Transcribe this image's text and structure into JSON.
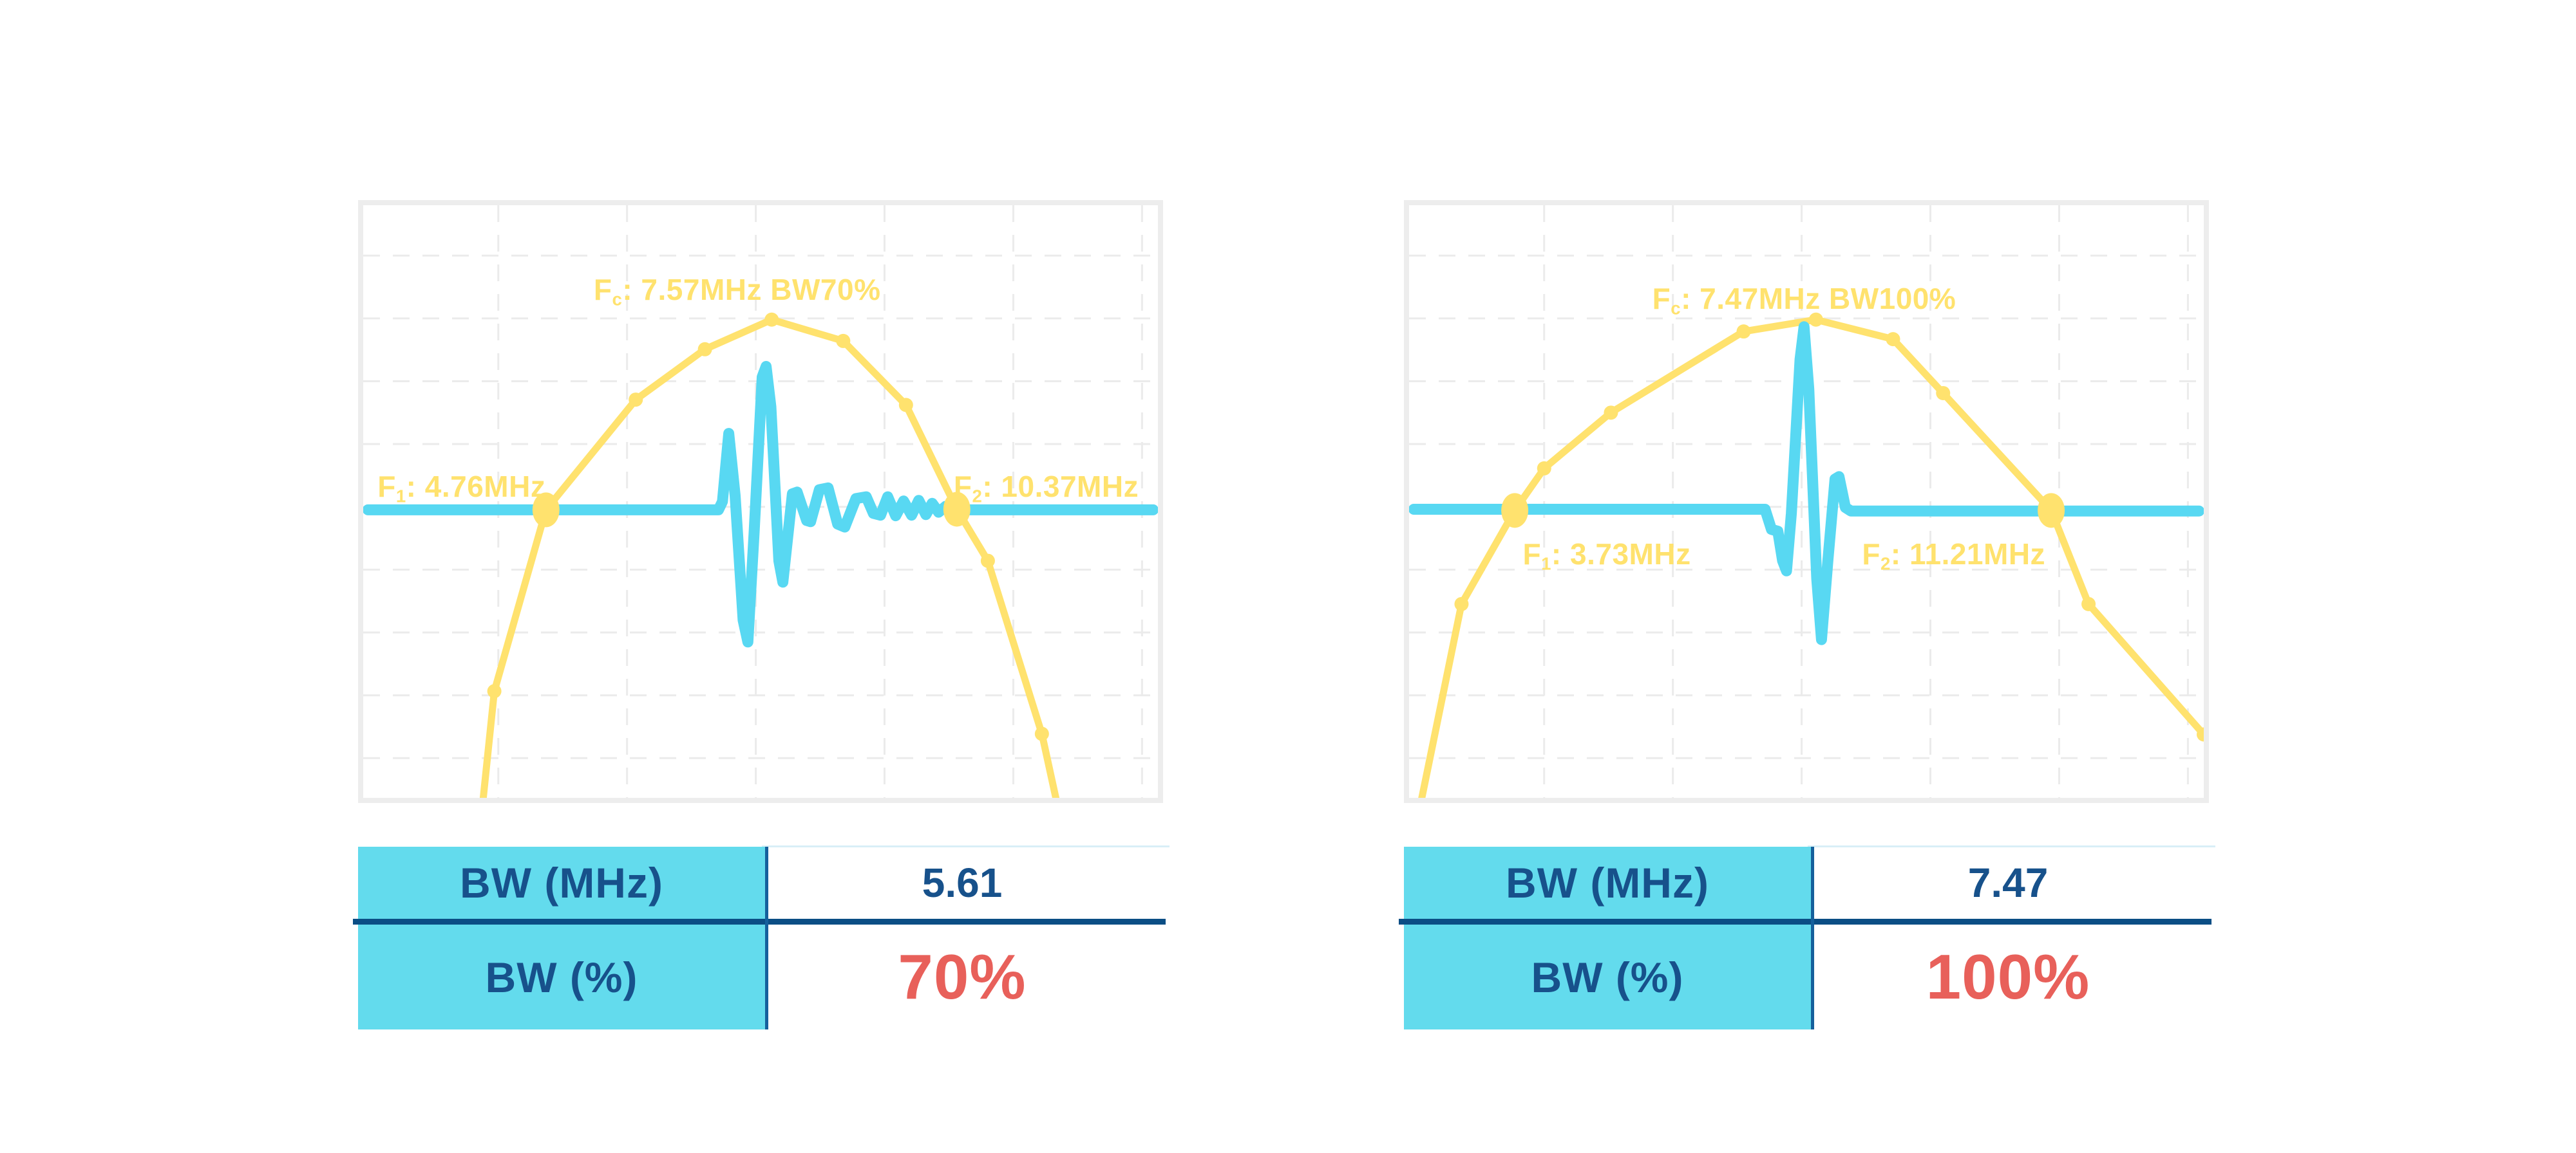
{
  "colors": {
    "spectrum_yellow": "#FFE26E",
    "waveform_cyan": "#58D8F2",
    "table_header_bg": "#63DBED",
    "navy_text": "#17518B",
    "red_value": "#E8605A",
    "row_divider_blue": "#0B4E85",
    "column_divider_blue": "#15609C",
    "value_column_topline": "#D9EFF7",
    "chart_border_gray": "#EDEDED",
    "grid_gray": "#EBEBEB"
  },
  "chart_data": [
    {
      "type": "line",
      "title": {
        "prefix": "F",
        "sub": "c",
        "rest": ": 7.57MHz BW70%",
        "full_text": "Fc: 7.57MHz BW70%"
      },
      "annotations": {
        "f1": {
          "prefix": "F",
          "sub": "1",
          "rest": ": 4.76MHz",
          "mhz": 4.76
        },
        "f2": {
          "prefix": "F",
          "sub": "2",
          "rest": ": 10.37MHz",
          "mhz": 10.37
        },
        "fc_mhz": 7.57,
        "bw_percent": 70
      },
      "axes": {
        "x_label": "",
        "y_label": "",
        "ticks": "none",
        "grid": "dashed"
      },
      "series": [
        {
          "name": "spectrum",
          "color": "#FFE26E",
          "width": 11,
          "points": [
            [
              0.148,
              1.04
            ],
            [
              0.165,
              0.82
            ],
            [
              0.23,
              0.514
            ],
            [
              0.343,
              0.328
            ],
            [
              0.43,
              0.243
            ],
            [
              0.514,
              0.193
            ],
            [
              0.604,
              0.229
            ],
            [
              0.683,
              0.337
            ],
            [
              0.747,
              0.513
            ],
            [
              0.786,
              0.6
            ],
            [
              0.854,
              0.892
            ],
            [
              0.878,
              1.04
            ]
          ],
          "markers": [
            {
              "x": 0.165,
              "y": 0.82,
              "size": "small"
            },
            {
              "x": 0.23,
              "y": 0.514,
              "size": "big"
            },
            {
              "x": 0.343,
              "y": 0.328,
              "size": "small"
            },
            {
              "x": 0.43,
              "y": 0.243,
              "size": "small"
            },
            {
              "x": 0.514,
              "y": 0.193,
              "size": "small"
            },
            {
              "x": 0.604,
              "y": 0.229,
              "size": "small"
            },
            {
              "x": 0.683,
              "y": 0.337,
              "size": "small"
            },
            {
              "x": 0.747,
              "y": 0.513,
              "size": "big"
            },
            {
              "x": 0.786,
              "y": 0.6,
              "size": "small"
            },
            {
              "x": 0.854,
              "y": 0.892,
              "size": "small"
            }
          ]
        },
        {
          "name": "pulse_waveform",
          "color": "#58D8F2",
          "width": 17,
          "points": [
            [
              0.006,
              0.514
            ],
            [
              0.447,
              0.514
            ],
            [
              0.452,
              0.5
            ],
            [
              0.46,
              0.385
            ],
            [
              0.468,
              0.49
            ],
            [
              0.478,
              0.7
            ],
            [
              0.484,
              0.737
            ],
            [
              0.492,
              0.55
            ],
            [
              0.502,
              0.29
            ],
            [
              0.507,
              0.272
            ],
            [
              0.513,
              0.34
            ],
            [
              0.523,
              0.6
            ],
            [
              0.528,
              0.636
            ],
            [
              0.54,
              0.487
            ],
            [
              0.546,
              0.484
            ],
            [
              0.558,
              0.532
            ],
            [
              0.563,
              0.534
            ],
            [
              0.574,
              0.48
            ],
            [
              0.585,
              0.477
            ],
            [
              0.597,
              0.538
            ],
            [
              0.606,
              0.543
            ],
            [
              0.62,
              0.495
            ],
            [
              0.633,
              0.492
            ],
            [
              0.642,
              0.52
            ],
            [
              0.651,
              0.523
            ],
            [
              0.66,
              0.492
            ],
            [
              0.67,
              0.524
            ],
            [
              0.68,
              0.499
            ],
            [
              0.69,
              0.523
            ],
            [
              0.699,
              0.498
            ],
            [
              0.708,
              0.522
            ],
            [
              0.716,
              0.503
            ],
            [
              0.724,
              0.518
            ],
            [
              0.733,
              0.508
            ],
            [
              0.74,
              0.514
            ],
            [
              0.994,
              0.514
            ]
          ]
        }
      ],
      "table": {
        "rows": [
          [
            "BW (MHz)",
            "5.61"
          ],
          [
            "BW (%)",
            "70%"
          ]
        ]
      }
    },
    {
      "type": "line",
      "title": {
        "prefix": "F",
        "sub": "c",
        "rest": ": 7.47MHz BW100%",
        "full_text": "Fc: 7.47MHz BW100%"
      },
      "annotations": {
        "f1": {
          "prefix": "F",
          "sub": "1",
          "rest": ": 3.73MHz",
          "mhz": 3.73
        },
        "f2": {
          "prefix": "F",
          "sub": "2",
          "rest": ": 11.21MHz",
          "mhz": 11.21
        },
        "fc_mhz": 7.47,
        "bw_percent": 100
      },
      "axes": {
        "x_label": "",
        "y_label": "",
        "ticks": "none",
        "grid": "dashed"
      },
      "series": [
        {
          "name": "spectrum",
          "color": "#FFE26E",
          "width": 11,
          "points": [
            [
              0.01,
              1.04
            ],
            [
              0.066,
              0.673
            ],
            [
              0.133,
              0.515
            ],
            [
              0.17,
              0.444
            ],
            [
              0.254,
              0.35
            ],
            [
              0.421,
              0.213
            ],
            [
              0.512,
              0.193
            ],
            [
              0.609,
              0.226
            ],
            [
              0.672,
              0.317
            ],
            [
              0.808,
              0.515
            ],
            [
              0.855,
              0.673
            ],
            [
              1.0,
              0.893
            ]
          ],
          "markers": [
            {
              "x": 0.066,
              "y": 0.673,
              "size": "small"
            },
            {
              "x": 0.133,
              "y": 0.515,
              "size": "big"
            },
            {
              "x": 0.17,
              "y": 0.444,
              "size": "small"
            },
            {
              "x": 0.254,
              "y": 0.35,
              "size": "small"
            },
            {
              "x": 0.421,
              "y": 0.213,
              "size": "small"
            },
            {
              "x": 0.512,
              "y": 0.193,
              "size": "small"
            },
            {
              "x": 0.609,
              "y": 0.226,
              "size": "small"
            },
            {
              "x": 0.672,
              "y": 0.317,
              "size": "small"
            },
            {
              "x": 0.808,
              "y": 0.515,
              "size": "big"
            },
            {
              "x": 0.855,
              "y": 0.673,
              "size": "small"
            },
            {
              "x": 1.0,
              "y": 0.893,
              "size": "small"
            }
          ]
        },
        {
          "name": "pulse_waveform",
          "color": "#58D8F2",
          "width": 17,
          "points": [
            [
              0.006,
              0.513
            ],
            [
              0.448,
              0.513
            ],
            [
              0.456,
              0.547
            ],
            [
              0.464,
              0.55
            ],
            [
              0.47,
              0.6
            ],
            [
              0.475,
              0.617
            ],
            [
              0.481,
              0.52
            ],
            [
              0.492,
              0.26
            ],
            [
              0.497,
              0.205
            ],
            [
              0.503,
              0.31
            ],
            [
              0.513,
              0.63
            ],
            [
              0.519,
              0.733
            ],
            [
              0.527,
              0.6
            ],
            [
              0.536,
              0.462
            ],
            [
              0.541,
              0.458
            ],
            [
              0.549,
              0.51
            ],
            [
              0.556,
              0.516
            ],
            [
              0.994,
              0.516
            ]
          ]
        }
      ],
      "table": {
        "rows": [
          [
            "BW (MHz)",
            "7.47"
          ],
          [
            "BW (%)",
            "100%"
          ]
        ]
      }
    }
  ]
}
